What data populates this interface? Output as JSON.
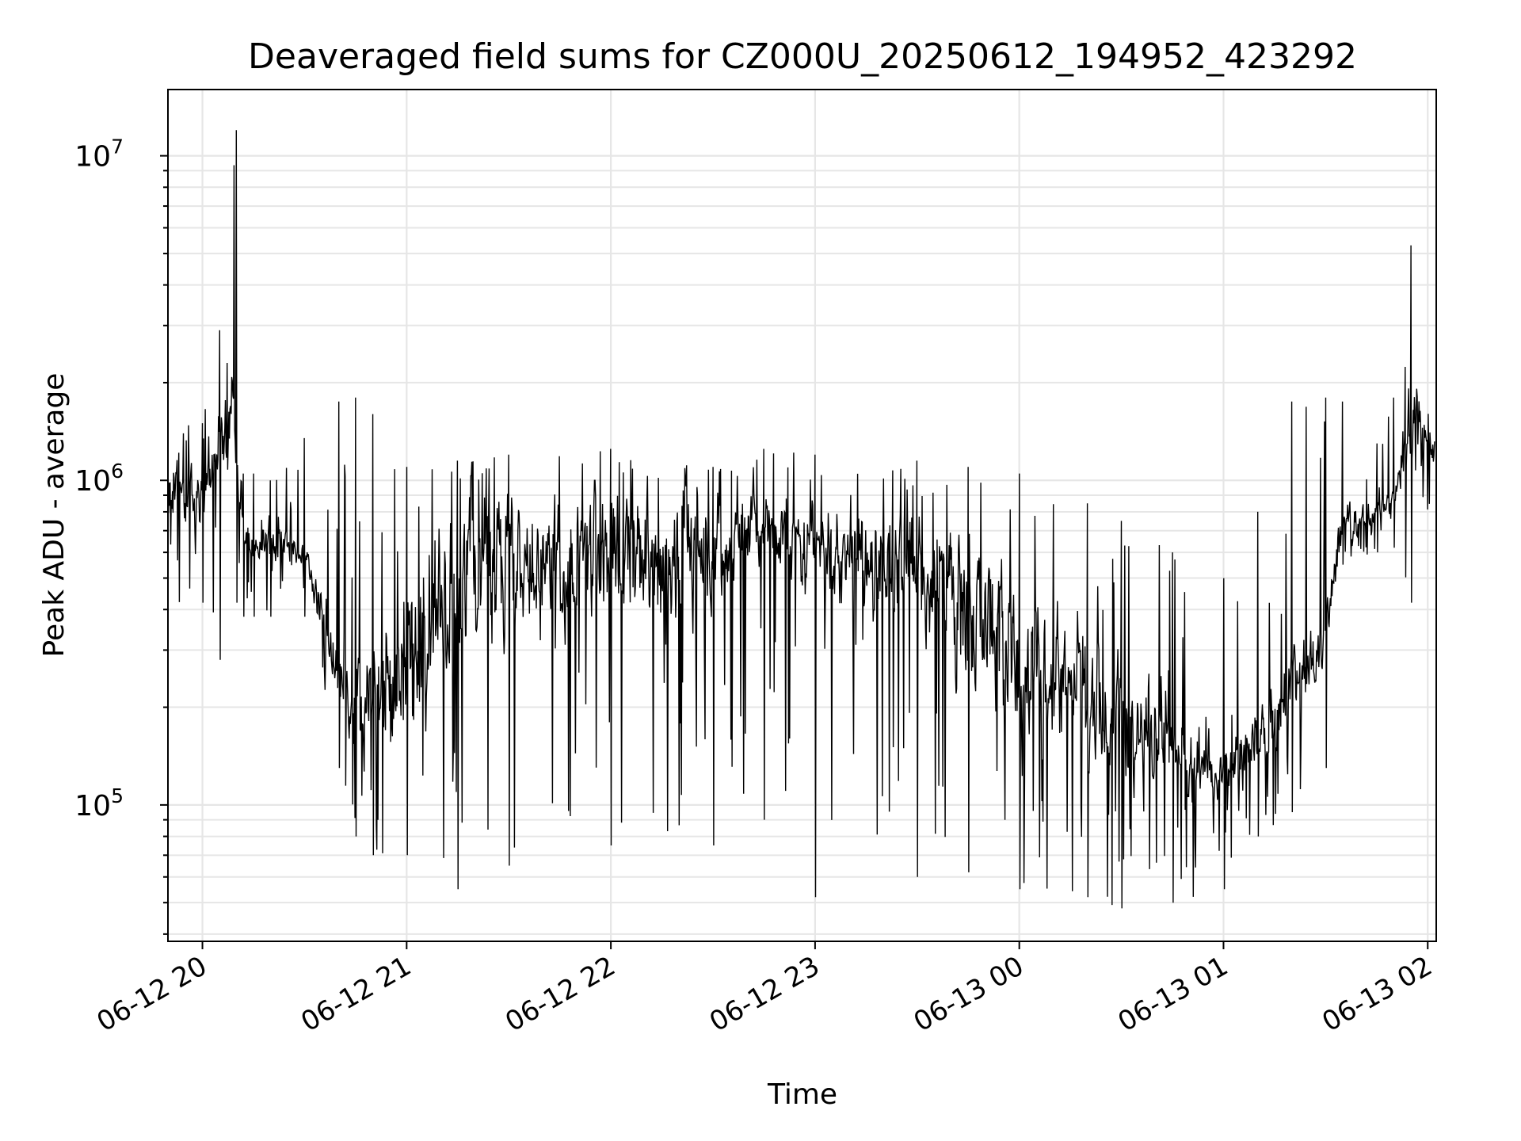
{
  "chart_data": {
    "type": "line",
    "title": "Deaveraged field sums for CZ000U_20250612_194952_423292",
    "xlabel": "Time",
    "ylabel": "Peak ADU - average",
    "yscale": "log",
    "ylim": [
      38000,
      16000000
    ],
    "xlim": [
      "06-12 19:49:52",
      "06-13 02:02:30"
    ],
    "grid": true,
    "x_ticks": [
      "06-12 20",
      "06-12 21",
      "06-12 22",
      "06-12 23",
      "06-13 00",
      "06-13 01",
      "06-13 02"
    ],
    "y_ticks": [
      {
        "base": "10",
        "exp": "5"
      },
      {
        "base": "10",
        "exp": "6"
      },
      {
        "base": "10",
        "exp": "7"
      }
    ],
    "series": [
      {
        "color": "#000000",
        "x": [
          "06-12 19:50",
          "06-12 20:00",
          "06-12 20:05",
          "06-12 20:10",
          "06-12 20:12",
          "06-12 20:15",
          "06-12 20:20",
          "06-12 20:30",
          "06-12 20:40",
          "06-12 20:45",
          "06-12 20:50",
          "06-12 21:00",
          "06-12 21:15",
          "06-12 21:30",
          "06-12 22:00",
          "06-12 22:30",
          "06-12 22:45",
          "06-12 23:00",
          "06-12 23:30",
          "06-12 23:45",
          "06-13 00:00",
          "06-13 00:20",
          "06-13 00:30",
          "06-13 00:45",
          "06-13 01:00",
          "06-13 01:10",
          "06-13 01:20",
          "06-13 01:30",
          "06-13 01:35",
          "06-13 01:45",
          "06-13 01:50",
          "06-13 01:55",
          "06-13 02:02"
        ],
        "low": [
          650000,
          650000,
          900000,
          900000,
          550000,
          550000,
          550000,
          500000,
          200000,
          140000,
          120000,
          130000,
          220000,
          300000,
          320000,
          330000,
          550000,
          400000,
          300000,
          200000,
          130000,
          120000,
          100000,
          90000,
          95000,
          110000,
          170000,
          230000,
          600000,
          700000,
          800000,
          850000,
          950000
        ],
        "high": [
          1200000,
          1100000,
          2000000,
          2600000,
          800000,
          750000,
          750000,
          650000,
          350000,
          300000,
          350000,
          700000,
          1000000,
          1000000,
          1000000,
          1000000,
          1000000,
          900000,
          900000,
          800000,
          550000,
          400000,
          330000,
          250000,
          150000,
          230000,
          320000,
          400000,
          900000,
          900000,
          1000000,
          2500000,
          1500000
        ],
        "min": [
          420000,
          420000,
          280000,
          420000,
          380000,
          380000,
          380000,
          380000,
          130000,
          80000,
          70000,
          70000,
          55000,
          65000,
          75000,
          75000,
          90000,
          52000,
          60000,
          62000,
          55000,
          52000,
          48000,
          50000,
          55000,
          80000,
          95000,
          130000,
          550000,
          600000,
          620000,
          420000,
          800000
        ],
        "max": [
          1500000,
          1500000,
          2900000,
          12000000,
          1050000,
          1050000,
          1000000,
          1350000,
          1750000,
          1800000,
          1600000,
          1100000,
          1150000,
          1200000,
          1250000,
          1100000,
          1250000,
          1200000,
          1150000,
          1100000,
          1050000,
          850000,
          750000,
          600000,
          500000,
          800000,
          1750000,
          1800000,
          1750000,
          1300000,
          1800000,
          5300000,
          2400000
        ]
      }
    ]
  }
}
